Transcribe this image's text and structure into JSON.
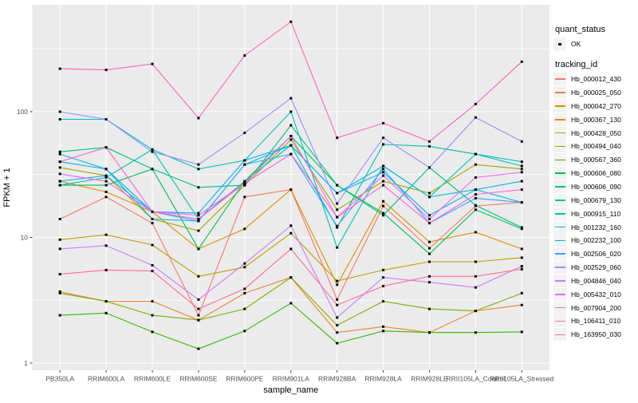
{
  "figure": {
    "panel_background": "#EBEBEB",
    "gridline_color": "#FFFFFF",
    "tick_color": "#333333",
    "tick_label_color": "#4D4D4D",
    "point_color": "#000000"
  },
  "axes": {
    "x_title": "sample_name",
    "y_title": "FPKM + 1",
    "y_tick_labels": [
      "1",
      "10",
      "100"
    ]
  },
  "legend": {
    "quant_status_title": "quant_status",
    "quant_status_items": [
      {
        "label": "OK",
        "marker": "black-point"
      }
    ],
    "tracking_id_title": "tracking_id"
  },
  "chart_data": {
    "type": "line",
    "title": "",
    "xlabel": "sample_name",
    "ylabel": "FPKM + 1",
    "y_scale": "log10",
    "y_ticks": [
      1,
      10,
      100
    ],
    "ylim": [
      0.93,
      700
    ],
    "grid": "white major + minor gridlines on grey panel",
    "legend_position": "right",
    "point_marker": "small black square",
    "quant_status": "OK",
    "categories": [
      "PB350LA",
      "RRIM600LA",
      "RRIM600LE",
      "RRIM600SE",
      "RRIM600PE",
      "RRIM901LA",
      "RRIM928BA",
      "RRIM928LA",
      "RRIM928LE",
      "RRII105LA_Control",
      "RRII105LA_Stressed"
    ],
    "series": [
      {
        "name": "Hb_000012_430",
        "color": "#F8766D",
        "values": [
          14,
          21,
          13,
          2.4,
          21,
          24,
          3.2,
          17.8,
          8.2,
          17.8,
          19
        ]
      },
      {
        "name": "Hb_000025_050",
        "color": "#EA8331",
        "values": [
          3.7,
          3.1,
          3.1,
          2.2,
          3.6,
          4.8,
          1.75,
          1.95,
          1.75,
          2.6,
          2.9
        ]
      },
      {
        "name": "Hb_000042_270",
        "color": "#D89000",
        "values": [
          28,
          23,
          16,
          8.1,
          11.7,
          24,
          4.2,
          19.4,
          9.2,
          11,
          8.1
        ]
      },
      {
        "name": "Hb_000367_130",
        "color": "#C09B00",
        "values": [
          9.6,
          10.5,
          8.7,
          4.9,
          5.8,
          10.8,
          4.5,
          5.5,
          6.4,
          6.4,
          6.9
        ]
      },
      {
        "name": "Hb_000428_050",
        "color": "#A3A500",
        "values": [
          36,
          31,
          14,
          11.3,
          26,
          60,
          16.6,
          28,
          22.5,
          38,
          35
        ]
      },
      {
        "name": "Hb_000494_040",
        "color": "#7CAE00",
        "values": [
          3.6,
          3.1,
          2.4,
          2.2,
          2.7,
          4.8,
          2.0,
          3.1,
          2.7,
          2.6,
          3.6
        ]
      },
      {
        "name": "Hb_000567_360",
        "color": "#39B600",
        "values": [
          2.4,
          2.5,
          1.77,
          1.3,
          1.8,
          3.0,
          1.44,
          1.8,
          1.75,
          1.75,
          1.77
        ]
      },
      {
        "name": "Hb_000606_080",
        "color": "#00BB4E",
        "values": [
          26,
          26,
          35,
          8.1,
          28,
          64,
          26,
          15.6,
          7.4,
          16.6,
          11.7
        ]
      },
      {
        "name": "Hb_000606_090",
        "color": "#00BF7D",
        "values": [
          48,
          52,
          35,
          25,
          26,
          78,
          26,
          15,
          36,
          18,
          12
        ]
      },
      {
        "name": "Hb_000679_130",
        "color": "#00C1A3",
        "values": [
          26,
          30,
          50,
          14,
          28,
          54,
          12,
          55,
          53,
          46,
          40
        ]
      },
      {
        "name": "Hb_000915_110",
        "color": "#00BFC4",
        "values": [
          87,
          87,
          50,
          35,
          41,
          100,
          8.3,
          37,
          21,
          46,
          37
        ]
      },
      {
        "name": "Hb_001232_160",
        "color": "#00BAE0",
        "values": [
          46,
          35,
          14,
          13.5,
          38,
          54,
          22.5,
          37,
          21,
          24,
          19
        ]
      },
      {
        "name": "Hb_002232_100",
        "color": "#00B0F6",
        "values": [
          40,
          35,
          16,
          15.6,
          41,
          54,
          22.5,
          33,
          15,
          24,
          28
        ]
      },
      {
        "name": "Hb_002506_020",
        "color": "#35A2FF",
        "values": [
          28,
          31,
          16,
          13.5,
          38,
          46,
          12.3,
          35,
          13,
          20.5,
          19
        ]
      },
      {
        "name": "Hb_002529_060",
        "color": "#9590FF",
        "values": [
          100,
          87,
          48,
          38,
          68,
          128,
          18.6,
          62,
          36,
          90,
          58
        ]
      },
      {
        "name": "Hb_004846_040",
        "color": "#C77CFF",
        "values": [
          8.1,
          8.6,
          6.0,
          3.2,
          6.2,
          12.4,
          2.3,
          4.8,
          4.4,
          4.0,
          5.9
        ]
      },
      {
        "name": "Hb_005432_010",
        "color": "#E76BF3",
        "values": [
          32,
          28,
          16,
          15,
          27,
          64,
          14.5,
          31,
          14,
          30,
          33
        ]
      },
      {
        "name": "Hb_007904_200",
        "color": "#FA62DB",
        "values": [
          40,
          52,
          16,
          14,
          27,
          46,
          14.5,
          26,
          13,
          22,
          24
        ]
      },
      {
        "name": "Hb_106411_010",
        "color": "#FF62BC",
        "values": [
          220,
          215,
          240,
          89,
          280,
          520,
          62,
          81,
          58,
          115,
          250
        ]
      },
      {
        "name": "Hb_163950_030",
        "color": "#FF6A98",
        "values": [
          5.1,
          5.5,
          5.4,
          2.7,
          3.9,
          8.1,
          2.9,
          4.1,
          4.9,
          4.9,
          5.6
        ]
      }
    ]
  }
}
